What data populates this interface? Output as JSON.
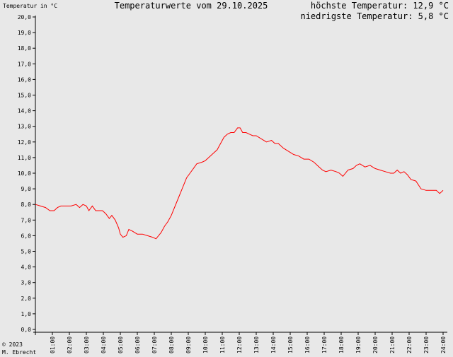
{
  "header": {
    "title": "Temperaturwerte vom 29.10.2025",
    "ylabel": "Temperatur in °C",
    "max_label": "höchste Temperatur: 12,9 °C",
    "min_label": "niedrigste Temperatur: 5,8 °C"
  },
  "footer": {
    "copyright": "© 2023",
    "author": "M. Ebrecht"
  },
  "chart_data": {
    "type": "line",
    "ylabel": "Temperatur in °C",
    "ylim": [
      0,
      20
    ],
    "xlim": [
      0,
      24
    ],
    "y_ticks": [
      "0,0",
      "1,0",
      "2,0",
      "3,0",
      "4,0",
      "5,0",
      "6,0",
      "7,0",
      "8,0",
      "9,0",
      "10,0",
      "11,0",
      "12,0",
      "13,0",
      "14,0",
      "15,0",
      "16,0",
      "17,0",
      "18,0",
      "19,0",
      "20,0"
    ],
    "x_ticks": [
      "01:00",
      "02:00",
      "03:00",
      "04:00",
      "05:00",
      "06:00",
      "07:00",
      "08:00",
      "09:00",
      "10:00",
      "11:00",
      "12:00",
      "13:00",
      "14:00",
      "15:00",
      "16:00",
      "17:00",
      "18:00",
      "19:00",
      "20:00",
      "21:00",
      "22:00",
      "23:00",
      "24:00"
    ],
    "line_color": "#ff0000",
    "series": [
      {
        "x": [
          0.0,
          0.3,
          0.6,
          0.85,
          1.1,
          1.3,
          1.5,
          1.8,
          2.1,
          2.4,
          2.6,
          2.8,
          3.0,
          3.15,
          3.35,
          3.55,
          3.75,
          3.95,
          4.15,
          4.35,
          4.5,
          4.7,
          4.9,
          5.0,
          5.15,
          5.35,
          5.5,
          5.7,
          6.0,
          6.3,
          6.6,
          6.9,
          7.1,
          7.4,
          7.6,
          7.8,
          8.0,
          8.3,
          8.6,
          8.9,
          9.1,
          9.3,
          9.5,
          9.8,
          10.0,
          10.2,
          10.5,
          10.7,
          10.9,
          11.1,
          11.3,
          11.5,
          11.7,
          11.9,
          12.05,
          12.2,
          12.4,
          12.6,
          12.8,
          13.0,
          13.3,
          13.6,
          13.9,
          14.1,
          14.3,
          14.6,
          14.9,
          15.2,
          15.5,
          15.8,
          16.1,
          16.4,
          16.7,
          16.9,
          17.1,
          17.4,
          17.7,
          17.9,
          18.1,
          18.4,
          18.7,
          18.9,
          19.1,
          19.4,
          19.7,
          20.0,
          20.3,
          20.6,
          20.9,
          21.1,
          21.3,
          21.5,
          21.7,
          21.9,
          22.1,
          22.4,
          22.7,
          23.0,
          23.3,
          23.6,
          23.8,
          24.0
        ],
        "y": [
          8.0,
          7.9,
          7.8,
          7.6,
          7.6,
          7.8,
          7.9,
          7.9,
          7.9,
          8.0,
          7.8,
          8.0,
          7.9,
          7.6,
          7.9,
          7.6,
          7.6,
          7.6,
          7.4,
          7.1,
          7.3,
          7.0,
          6.5,
          6.1,
          5.9,
          6.0,
          6.4,
          6.3,
          6.1,
          6.1,
          6.0,
          5.9,
          5.8,
          6.2,
          6.6,
          6.9,
          7.3,
          8.1,
          8.9,
          9.7,
          10.0,
          10.3,
          10.6,
          10.7,
          10.8,
          11.0,
          11.3,
          11.5,
          11.9,
          12.3,
          12.5,
          12.6,
          12.6,
          12.9,
          12.9,
          12.6,
          12.6,
          12.5,
          12.4,
          12.4,
          12.2,
          12.0,
          12.1,
          11.9,
          11.9,
          11.6,
          11.4,
          11.2,
          11.1,
          10.9,
          10.9,
          10.7,
          10.4,
          10.2,
          10.1,
          10.2,
          10.1,
          10.0,
          9.8,
          10.2,
          10.3,
          10.5,
          10.6,
          10.4,
          10.5,
          10.3,
          10.2,
          10.1,
          10.0,
          10.0,
          10.2,
          10.0,
          10.1,
          9.9,
          9.6,
          9.5,
          9.0,
          8.9,
          8.9,
          8.9,
          8.7,
          8.9
        ]
      }
    ]
  }
}
